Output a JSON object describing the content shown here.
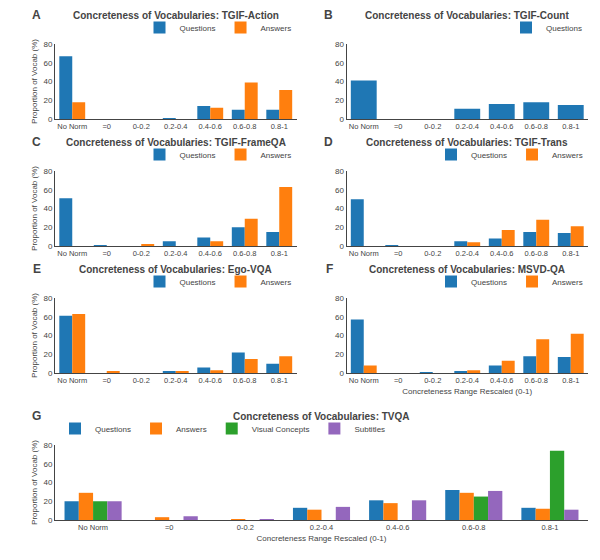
{
  "chart_data": [
    {
      "type": "bar",
      "title": "Concreteness of Vocabularies: TGIF-Action",
      "annotations": [
        "A"
      ],
      "categories": [
        "No Norm",
        "=0",
        "0-0.2",
        "0.2-0.4",
        "0.4-0.6",
        "0.6-0.8",
        "0.8-1"
      ],
      "series": [
        {
          "name": "Questions",
          "color": "#1f77b4",
          "values": [
            67,
            0,
            0,
            1,
            14,
            10,
            10
          ]
        },
        {
          "name": "Answers",
          "color": "#ff7f0e",
          "values": [
            18,
            0,
            0,
            0,
            12,
            39,
            31
          ]
        }
      ],
      "ylim": [
        0,
        80
      ],
      "yticks": [
        0,
        20,
        40,
        60,
        80
      ],
      "ylabel": "Proportion of Vocab (%)",
      "legend": "upper right",
      "grid": false
    },
    {
      "type": "bar",
      "title": "Concreteness of Vocabularies: TGIF-Count",
      "annotations": [
        "B"
      ],
      "categories": [
        "No Norm",
        "=0",
        "0-0.2",
        "0.2-0.4",
        "0.4-0.6",
        "0.6-0.8",
        "0.8-1"
      ],
      "series": [
        {
          "name": "Questions",
          "color": "#1f77b4",
          "values": [
            41,
            0,
            0,
            11,
            16,
            18,
            15
          ]
        }
      ],
      "ylim": [
        0,
        80
      ],
      "yticks": [
        0,
        20,
        40,
        60,
        80
      ],
      "legend": "upper right",
      "grid": false
    },
    {
      "type": "bar",
      "title": "Concreteness of Vocabularies: TGIF-FrameQA",
      "annotations": [
        "C"
      ],
      "categories": [
        "No Norm",
        "=0",
        "0-0.2",
        "0.2-0.4",
        "0.4-0.6",
        "0.6-0.8",
        "0.8-1"
      ],
      "series": [
        {
          "name": "Questions",
          "color": "#1f77b4",
          "values": [
            51,
            1,
            0,
            5,
            9,
            20,
            15
          ]
        },
        {
          "name": "Answers",
          "color": "#ff7f0e",
          "values": [
            0,
            0,
            2,
            0,
            5,
            29,
            63
          ]
        }
      ],
      "ylim": [
        0,
        80
      ],
      "yticks": [
        0,
        20,
        40,
        60,
        80
      ],
      "ylabel": "Proportion of Vocab (%)",
      "legend": "upper right",
      "grid": false
    },
    {
      "type": "bar",
      "title": "Concreteness of Vocabularies: TGIF-Trans",
      "annotations": [
        "D"
      ],
      "categories": [
        "No Norm",
        "=0",
        "0-0.2",
        "0.2-0.4",
        "0.4-0.6",
        "0.6-0.8",
        "0.8-1"
      ],
      "series": [
        {
          "name": "Questions",
          "color": "#1f77b4",
          "values": [
            50,
            1,
            0,
            5,
            8,
            15,
            14
          ]
        },
        {
          "name": "Answers",
          "color": "#ff7f0e",
          "values": [
            0,
            0,
            0,
            4,
            17,
            28,
            21
          ]
        }
      ],
      "ylim": [
        0,
        80
      ],
      "yticks": [
        0,
        20,
        40,
        60,
        80
      ],
      "legend": "upper right",
      "grid": false
    },
    {
      "type": "bar",
      "title": "Concreteness of Vocabularies: Ego-VQA",
      "annotations": [
        "E"
      ],
      "categories": [
        "No Norm",
        "=0",
        "0-0.2",
        "0.2-0.4",
        "0.4-0.6",
        "0.6-0.8",
        "0.8-1"
      ],
      "series": [
        {
          "name": "Questions",
          "color": "#1f77b4",
          "values": [
            61,
            0,
            0,
            2,
            6,
            22,
            10
          ]
        },
        {
          "name": "Answers",
          "color": "#ff7f0e",
          "values": [
            63,
            2,
            0,
            2,
            3,
            15,
            18
          ]
        }
      ],
      "ylim": [
        0,
        80
      ],
      "yticks": [
        0,
        20,
        40,
        60,
        80
      ],
      "ylabel": "Proportion of Vocab (%)",
      "legend": "upper right",
      "grid": false
    },
    {
      "type": "bar",
      "title": "Concreteness of Vocabularies: MSVD-QA",
      "annotations": [
        "F"
      ],
      "categories": [
        "No Norm",
        "=0",
        "0-0.2",
        "0.2-0.4",
        "0.4-0.6",
        "0.6-0.8",
        "0.8-1"
      ],
      "series": [
        {
          "name": "Questions",
          "color": "#1f77b4",
          "values": [
            57,
            0,
            1,
            2,
            8,
            18,
            17
          ]
        },
        {
          "name": "Answers",
          "color": "#ff7f0e",
          "values": [
            8,
            0,
            0,
            3,
            13,
            36,
            42
          ]
        }
      ],
      "ylim": [
        0,
        80
      ],
      "yticks": [
        0,
        20,
        40,
        60,
        80
      ],
      "xlabel": "Concreteness Range Rescaled (0-1)",
      "legend": "upper right",
      "grid": false
    },
    {
      "type": "bar",
      "title": "Concreteness of Vocabularies: TVQA",
      "annotations": [
        "G"
      ],
      "categories": [
        "No Norm",
        "=0",
        "0-0.2",
        "0.2-0.4",
        "0.4-0.6",
        "0.6-0.8",
        "0.8-1"
      ],
      "series": [
        {
          "name": "Questions",
          "color": "#1f77b4",
          "values": [
            20,
            0,
            0,
            13,
            21,
            32,
            13
          ]
        },
        {
          "name": "Answers",
          "color": "#ff7f0e",
          "values": [
            29,
            3,
            1,
            11,
            18,
            29,
            12
          ]
        },
        {
          "name": "Visual Concepts",
          "color": "#2ca02c",
          "values": [
            20,
            0,
            0,
            0,
            0,
            25,
            74
          ]
        },
        {
          "name": "Subtitles",
          "color": "#9467bd",
          "values": [
            20,
            4,
            1,
            14,
            21,
            31,
            11
          ]
        }
      ],
      "ylim": [
        0,
        80
      ],
      "yticks": [
        0,
        20,
        40,
        60,
        80
      ],
      "ylabel": "Proportion of Vocab (%)",
      "xlabel": "Concreteness Range Rescaled (0-1)",
      "legend": "upper left",
      "grid": false
    }
  ]
}
